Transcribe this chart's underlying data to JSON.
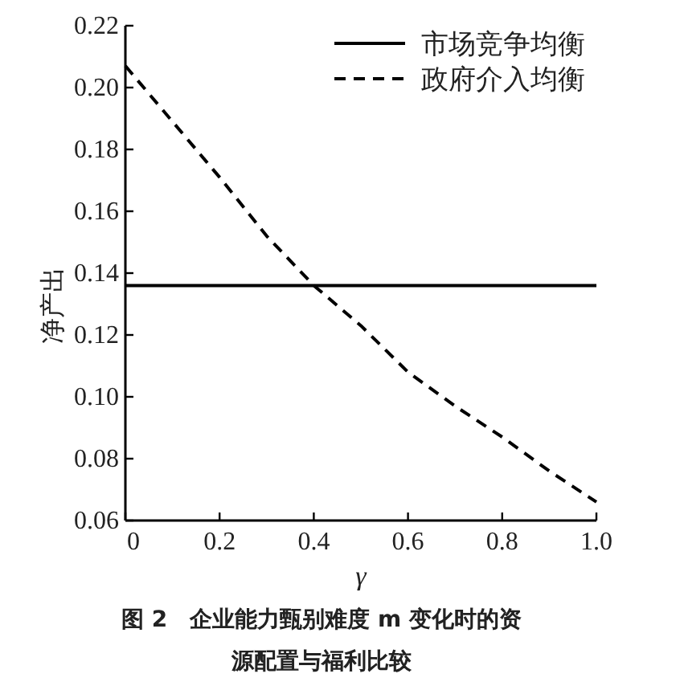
{
  "chart_data": {
    "type": "line",
    "title": "图 2　企业能力甄别难度 m 变化时的资源配置与福利比较",
    "xlabel": "γ",
    "ylabel": "净产出",
    "xlim": [
      0,
      1.0
    ],
    "xticks": [
      0,
      0.2,
      0.4,
      0.6,
      0.8,
      {
        "value": 1.0,
        "label": "1.0"
      }
    ],
    "ylim": [
      0.06,
      0.22
    ],
    "yticks": [
      {
        "value": 0.06,
        "label": "0.06"
      },
      {
        "value": 0.08,
        "label": "0.08"
      },
      {
        "value": 0.1,
        "label": "0.10"
      },
      {
        "value": 0.12,
        "label": "0.12"
      },
      {
        "value": 0.14,
        "label": "0.14"
      },
      {
        "value": 0.16,
        "label": "0.16"
      },
      {
        "value": 0.18,
        "label": "0.18"
      },
      {
        "value": 0.2,
        "label": "0.20"
      },
      {
        "value": 0.22,
        "label": "0.22"
      }
    ],
    "legend": "top right",
    "grid": false,
    "series": [
      {
        "name": "市场竞争均衡",
        "color": "#000000",
        "line_style": "solid",
        "x": [
          0,
          1.0
        ],
        "values": [
          0.136,
          0.136
        ]
      },
      {
        "name": "政府介入均衡",
        "color": "#000000",
        "line_style": "dashed",
        "x": [
          0,
          0.1,
          0.2,
          0.3,
          0.4,
          0.5,
          0.6,
          0.7,
          0.8,
          0.9,
          1.0
        ],
        "values": [
          0.207,
          0.189,
          0.171,
          0.152,
          0.136,
          0.123,
          0.108,
          0.097,
          0.087,
          0.076,
          0.066
        ]
      }
    ]
  }
}
